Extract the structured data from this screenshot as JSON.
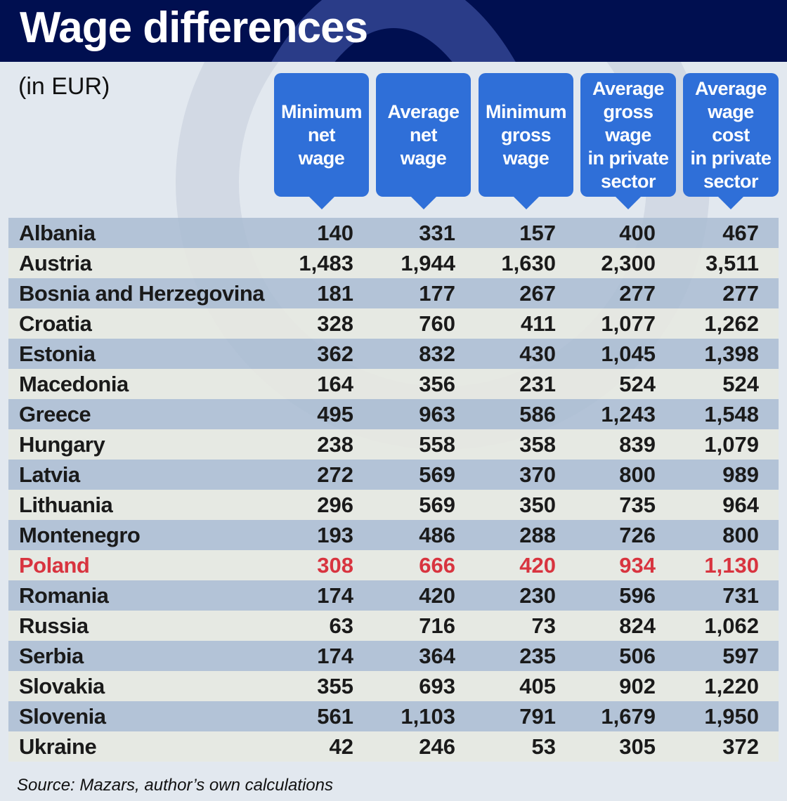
{
  "title": "Wage differences",
  "unit": "(in EUR)",
  "source": "Source: Mazars, author’s own calculations",
  "colors": {
    "header_bg": "#000f50",
    "column_header": "#2f6fd8",
    "highlight": "#d8343f"
  },
  "chart_data": {
    "type": "table",
    "title": "Wage differences",
    "columns": [
      "Minimum\nnet\nwage",
      "Average\nnet\nwage",
      "Minimum\ngross\nwage",
      "Average\ngross\nwage\nin private\nsector",
      "Average\nwage\ncost\nin private\nsector"
    ],
    "highlighted_row": "Poland",
    "rows": [
      {
        "country": "Albania",
        "values": [
          "140",
          "331",
          "157",
          "400",
          "467"
        ]
      },
      {
        "country": "Austria",
        "values": [
          "1,483",
          "1,944",
          "1,630",
          "2,300",
          "3,511"
        ]
      },
      {
        "country": "Bosnia and Herzegovina",
        "values": [
          "181",
          "177",
          "267",
          "277",
          "277"
        ]
      },
      {
        "country": "Croatia",
        "values": [
          "328",
          "760",
          "411",
          "1,077",
          "1,262"
        ]
      },
      {
        "country": "Estonia",
        "values": [
          "362",
          "832",
          "430",
          "1,045",
          "1,398"
        ]
      },
      {
        "country": "Macedonia",
        "values": [
          "164",
          "356",
          "231",
          "524",
          "524"
        ]
      },
      {
        "country": "Greece",
        "values": [
          "495",
          "963",
          "586",
          "1,243",
          "1,548"
        ]
      },
      {
        "country": "Hungary",
        "values": [
          "238",
          "558",
          "358",
          "839",
          "1,079"
        ]
      },
      {
        "country": "Latvia",
        "values": [
          "272",
          "569",
          "370",
          "800",
          "989"
        ]
      },
      {
        "country": "Lithuania",
        "values": [
          "296",
          "569",
          "350",
          "735",
          "964"
        ]
      },
      {
        "country": "Montenegro",
        "values": [
          "193",
          "486",
          "288",
          "726",
          "800"
        ]
      },
      {
        "country": "Poland",
        "values": [
          "308",
          "666",
          "420",
          "934",
          "1,130"
        ]
      },
      {
        "country": "Romania",
        "values": [
          "174",
          "420",
          "230",
          "596",
          "731"
        ]
      },
      {
        "country": "Russia",
        "values": [
          "63",
          "716",
          "73",
          "824",
          "1,062"
        ]
      },
      {
        "country": "Serbia",
        "values": [
          "174",
          "364",
          "235",
          "506",
          "597"
        ]
      },
      {
        "country": "Slovakia",
        "values": [
          "355",
          "693",
          "405",
          "902",
          "1,220"
        ]
      },
      {
        "country": "Slovenia",
        "values": [
          "561",
          "1,103",
          "791",
          "1,679",
          "1,950"
        ]
      },
      {
        "country": "Ukraine",
        "values": [
          "42",
          "246",
          "53",
          "305",
          "372"
        ]
      }
    ]
  }
}
